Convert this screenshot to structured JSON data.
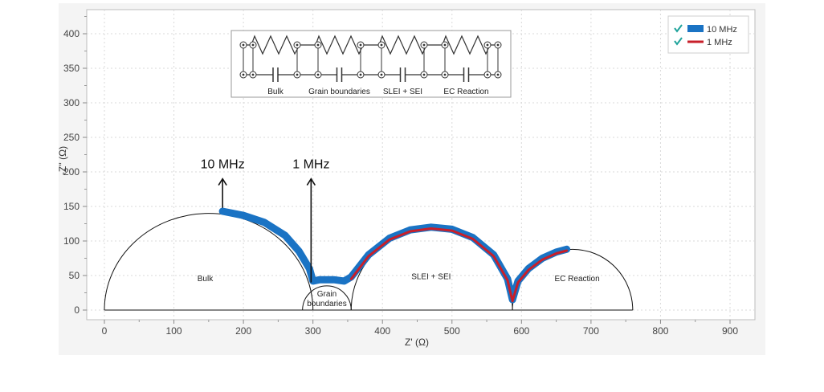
{
  "chart_data": {
    "type": "line",
    "xlabel": "Z' (Ω)",
    "ylabel": "-Z'' (Ω)",
    "xlim": [
      0,
      930
    ],
    "ylim": [
      0,
      430
    ],
    "x_ticks": [
      0,
      100,
      200,
      300,
      400,
      500,
      600,
      700,
      800,
      900
    ],
    "y_ticks": [
      0,
      50,
      100,
      150,
      200,
      250,
      300,
      350,
      400
    ],
    "grid": true,
    "legend_position": "top-right",
    "series": [
      {
        "name": "10 MHz",
        "color": "#1a73c4",
        "points": [
          [
            170,
            143
          ],
          [
            200,
            137
          ],
          [
            230,
            127
          ],
          [
            260,
            108
          ],
          [
            280,
            85
          ],
          [
            295,
            60
          ],
          [
            300,
            42
          ],
          [
            310,
            44
          ],
          [
            330,
            44
          ],
          [
            345,
            42
          ],
          [
            355,
            48
          ],
          [
            380,
            80
          ],
          [
            410,
            104
          ],
          [
            440,
            116
          ],
          [
            470,
            120
          ],
          [
            500,
            117
          ],
          [
            530,
            105
          ],
          [
            560,
            80
          ],
          [
            580,
            45
          ],
          [
            587,
            15
          ],
          [
            595,
            42
          ],
          [
            610,
            60
          ],
          [
            630,
            75
          ],
          [
            650,
            84
          ],
          [
            665,
            88
          ]
        ]
      },
      {
        "name": "1 MHz",
        "color": "#c81f2a",
        "points": [
          [
            355,
            45
          ],
          [
            380,
            78
          ],
          [
            410,
            102
          ],
          [
            440,
            114
          ],
          [
            470,
            118
          ],
          [
            500,
            115
          ],
          [
            530,
            103
          ],
          [
            560,
            78
          ],
          [
            580,
            43
          ],
          [
            587,
            13
          ],
          [
            595,
            40
          ],
          [
            610,
            58
          ],
          [
            630,
            73
          ],
          [
            650,
            82
          ],
          [
            665,
            86
          ]
        ]
      }
    ],
    "fit_arcs": [
      {
        "label": "Bulk",
        "x_start": 0,
        "x_end": 300,
        "peak": 140
      },
      {
        "label": "Grain boundaries",
        "x_start": 285,
        "x_end": 355,
        "peak": 35
      },
      {
        "label": "SLEI + SEI",
        "x_start": 355,
        "x_end": 587,
        "peak": 118
      },
      {
        "label": "EC Reaction",
        "x_start": 587,
        "x_end": 760,
        "peak": 88
      }
    ],
    "annotations": [
      {
        "text": "10 MHz",
        "x": 170,
        "y_text": 210,
        "y_arrow_base": 148,
        "y_arrow_tip": 190
      },
      {
        "text": "1 MHz",
        "x": 295,
        "y_text": 210,
        "y_arrow_base": 40,
        "y_arrow_tip": 190
      }
    ],
    "region_labels": {
      "bulk": "Bulk",
      "grain_line1": "Grain",
      "grain_line2": "boundaries",
      "slei": "SLEI + SEI",
      "ec": "EC Reaction"
    },
    "circuit": {
      "labels": [
        "Bulk",
        "Grain boundaries",
        "SLEI + SEI",
        "EC Reaction"
      ]
    },
    "legend": {
      "check_color": "#1fa39b",
      "items": [
        "10 MHz",
        "1 MHz"
      ]
    }
  }
}
